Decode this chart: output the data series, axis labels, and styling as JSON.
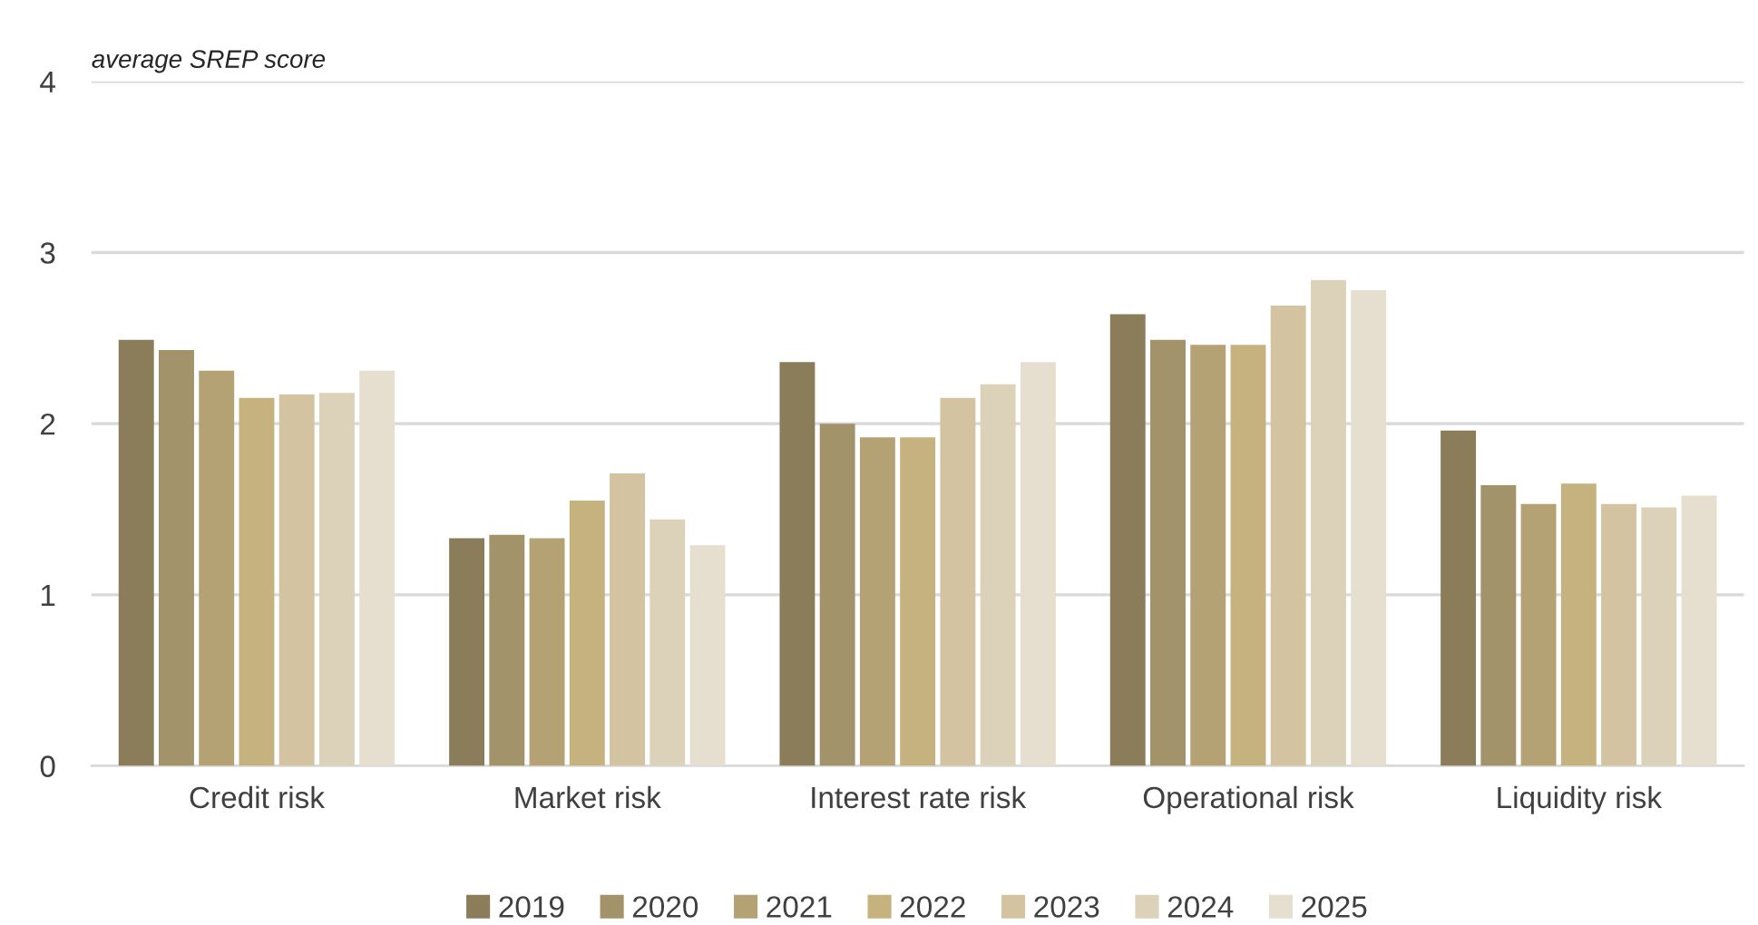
{
  "chart_data": {
    "type": "bar",
    "ylabel": "average SREP score",
    "categories": [
      "Credit risk",
      "Market risk",
      "Interest rate risk",
      "Operational risk",
      "Liquidity risk"
    ],
    "series": [
      {
        "name": "2019",
        "color": "#8c7d5a",
        "values": [
          2.49,
          1.33,
          2.36,
          2.64,
          1.96
        ]
      },
      {
        "name": "2020",
        "color": "#a3936a",
        "values": [
          2.43,
          1.35,
          2.0,
          2.49,
          1.64
        ]
      },
      {
        "name": "2021",
        "color": "#b4a274",
        "values": [
          2.31,
          1.33,
          1.92,
          2.46,
          1.53
        ]
      },
      {
        "name": "2022",
        "color": "#c6b27e",
        "values": [
          2.15,
          1.55,
          1.92,
          2.46,
          1.65
        ]
      },
      {
        "name": "2023",
        "color": "#d3c3a0",
        "values": [
          2.17,
          1.71,
          2.15,
          2.69,
          1.53
        ]
      },
      {
        "name": "2024",
        "color": "#dcd2ba",
        "values": [
          2.18,
          1.44,
          2.23,
          2.84,
          1.51
        ]
      },
      {
        "name": "2025",
        "color": "#e6dfcf",
        "values": [
          2.31,
          1.29,
          2.36,
          2.78,
          1.58
        ]
      }
    ],
    "ylim": [
      0,
      4
    ],
    "yticks": [
      0,
      1,
      2,
      3,
      4
    ],
    "grid": "y",
    "legend": "bottom"
  }
}
